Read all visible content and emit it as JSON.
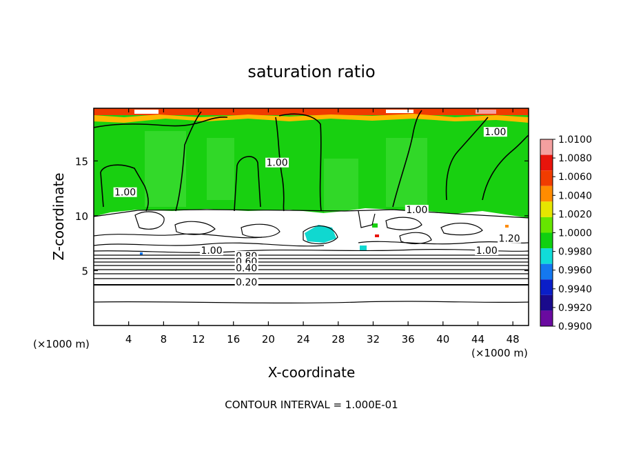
{
  "chart_data": {
    "type": "heatmap",
    "title": "saturation ratio",
    "xlabel": "X-coordinate",
    "ylabel": "Z-coordinate",
    "x_unit": "(×1000 m)",
    "y_unit": "(×1000 m)",
    "xlim": [
      0,
      49.8
    ],
    "ylim": [
      0,
      19.8
    ],
    "x_ticks": [
      4,
      8,
      12,
      16,
      20,
      24,
      28,
      32,
      36,
      40,
      44,
      48
    ],
    "y_ticks": [
      5,
      10,
      15
    ],
    "footer": "CONTOUR INTERVAL = 1.000E-01",
    "colorbar": {
      "levels": [
        "1.0100",
        "1.0080",
        "1.0060",
        "1.0040",
        "1.0020",
        "1.0000",
        "0.9980",
        "0.9960",
        "0.9940",
        "0.9920",
        "0.9900"
      ],
      "colors": [
        "#f4a0a0",
        "#e8140c",
        "#f03c00",
        "#ff8c00",
        "#e6e600",
        "#66e600",
        "#10d010",
        "#10dcd8",
        "#1478f0",
        "#0a1ec8",
        "#1a0a8c",
        "#6a0aa0"
      ]
    },
    "contour_labels": [
      {
        "text": "1.00",
        "x": 3.6,
        "z": 11.9
      },
      {
        "text": "1.00",
        "x": 21.0,
        "z": 14.6
      },
      {
        "text": "1.00",
        "x": 46.0,
        "z": 17.4
      },
      {
        "text": "1.00",
        "x": 37.0,
        "z": 10.3
      },
      {
        "text": "1.20",
        "x": 47.6,
        "z": 7.7
      },
      {
        "text": "1.00",
        "x": 13.5,
        "z": 6.6
      },
      {
        "text": "1.00",
        "x": 45.0,
        "z": 6.6
      },
      {
        "text": "0.80",
        "x": 17.5,
        "z": 6.1
      },
      {
        "text": "0.60",
        "x": 17.5,
        "z": 5.6
      },
      {
        "text": "0.40",
        "x": 17.5,
        "z": 5.0
      },
      {
        "text": "0.20",
        "x": 17.5,
        "z": 3.7
      }
    ],
    "grid": false,
    "legend_position": "right colorbar"
  }
}
